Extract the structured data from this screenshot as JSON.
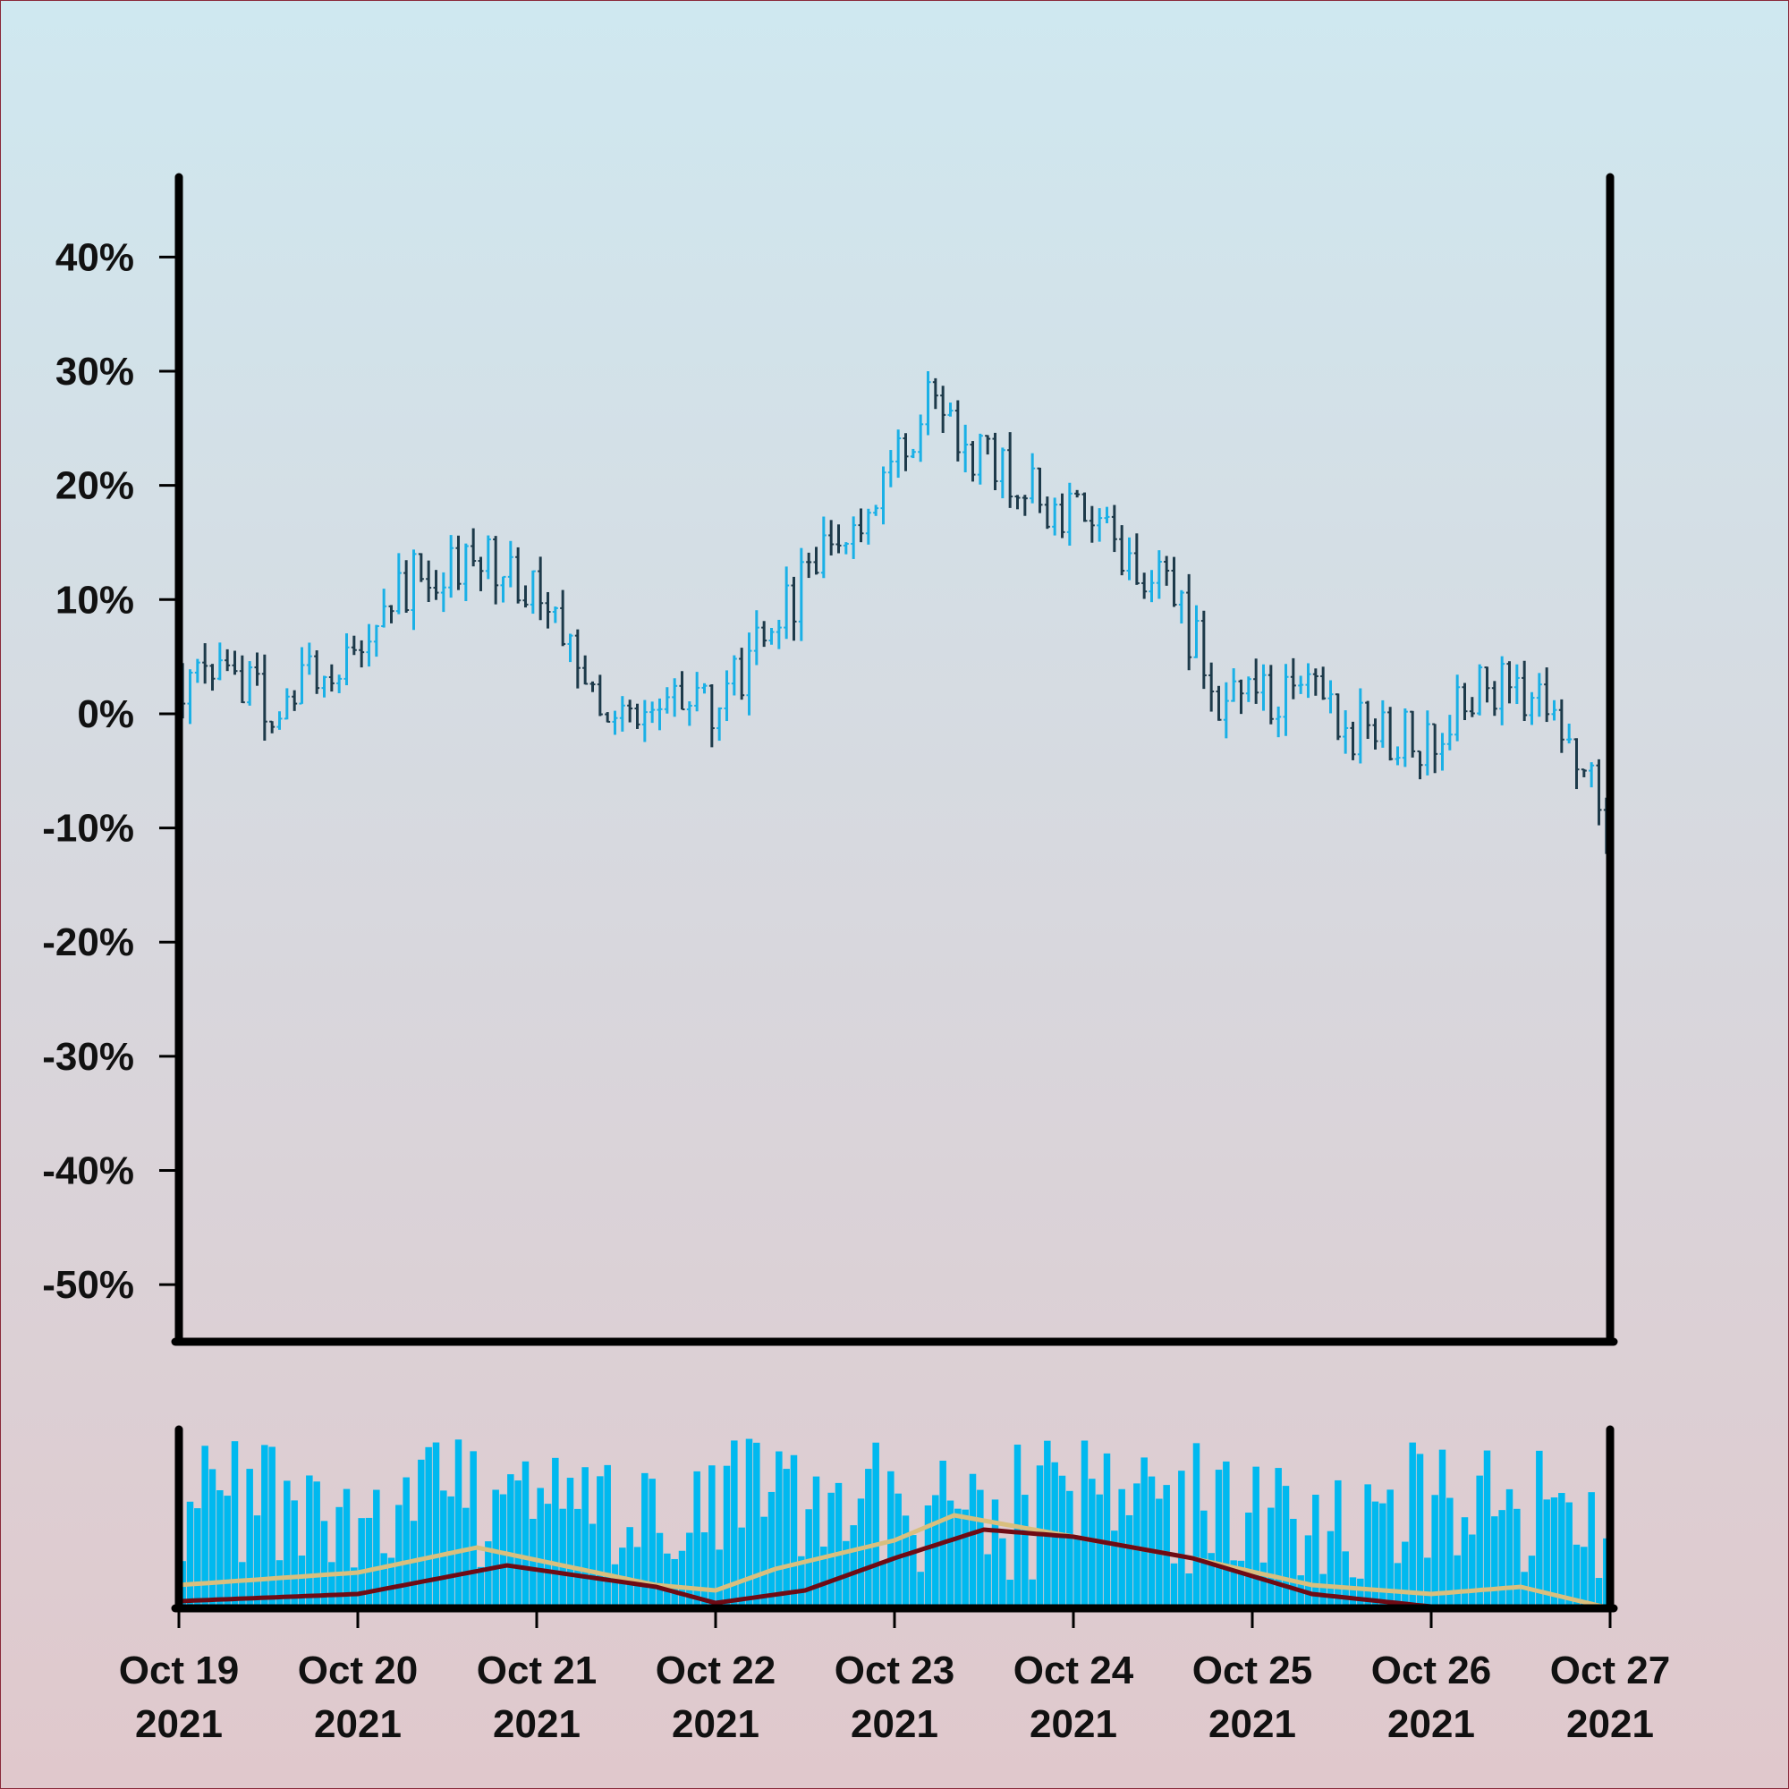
{
  "chart_data": {
    "type": "ohlc",
    "title": "",
    "xlabel": "",
    "ylabel": "",
    "ylim": [
      -55,
      47
    ],
    "y_ticks": [
      "40%",
      "30%",
      "20%",
      "10%",
      "0%",
      "-10%",
      "-20%",
      "-30%",
      "-40%",
      "-50%"
    ],
    "y_tick_values": [
      40,
      30,
      20,
      10,
      0,
      -10,
      -20,
      -30,
      -40,
      -50
    ],
    "x_ticks": [
      {
        "line1": "Oct 19",
        "line2": "2021",
        "date": "2021-10-19"
      },
      {
        "line1": "Oct 20",
        "line2": "2021",
        "date": "2021-10-20"
      },
      {
        "line1": "Oct 21",
        "line2": "2021",
        "date": "2021-10-21"
      },
      {
        "line1": "Oct 22",
        "line2": "2021",
        "date": "2021-10-22"
      },
      {
        "line1": "Oct 23",
        "line2": "2021",
        "date": "2021-10-23"
      },
      {
        "line1": "Oct 24",
        "line2": "2021",
        "date": "2021-10-24"
      },
      {
        "line1": "Oct 25",
        "line2": "2021",
        "date": "2021-10-25"
      },
      {
        "line1": "Oct 26",
        "line2": "2021",
        "date": "2021-10-26"
      },
      {
        "line1": "Oct 27",
        "line2": "2021",
        "date": "2021-10-27"
      }
    ],
    "x_range": [
      "2021-10-19",
      "2021-10-27"
    ],
    "bar_interval_hours": 1,
    "close_path_percent": [
      [
        "2021-10-19T00:00",
        3
      ],
      [
        "2021-10-19T08:00",
        4
      ],
      [
        "2021-10-19T12:00",
        0
      ],
      [
        "2021-10-20T00:00",
        6
      ],
      [
        "2021-10-20T08:00",
        12
      ],
      [
        "2021-10-20T16:00",
        14
      ],
      [
        "2021-10-21T00:00",
        11
      ],
      [
        "2021-10-21T08:00",
        2
      ],
      [
        "2021-10-21T16:00",
        0
      ],
      [
        "2021-10-22T00:00",
        0
      ],
      [
        "2021-10-22T08:00",
        8
      ],
      [
        "2021-10-22T16:00",
        16
      ],
      [
        "2021-10-23T00:00",
        21
      ],
      [
        "2021-10-23T04:00",
        27
      ],
      [
        "2021-10-23T12:00",
        22
      ],
      [
        "2021-10-24T00:00",
        17
      ],
      [
        "2021-10-24T12:00",
        12
      ],
      [
        "2021-10-24T20:00",
        1
      ],
      [
        "2021-10-25T08:00",
        1
      ],
      [
        "2021-10-25T16:00",
        -2
      ],
      [
        "2021-10-26T00:00",
        -2
      ],
      [
        "2021-10-26T08:00",
        3
      ],
      [
        "2021-10-26T16:00",
        0
      ],
      [
        "2021-10-27T00:00",
        -10
      ]
    ],
    "volume_ma_fast_path": [
      [
        "2021-10-19T00:00",
        0.13
      ],
      [
        "2021-10-20T00:00",
        0.2
      ],
      [
        "2021-10-20T16:00",
        0.34
      ],
      [
        "2021-10-21T16:00",
        0.13
      ],
      [
        "2021-10-22T00:00",
        0.1
      ],
      [
        "2021-10-22T08:00",
        0.22
      ],
      [
        "2021-10-23T00:00",
        0.38
      ],
      [
        "2021-10-23T08:00",
        0.52
      ],
      [
        "2021-10-24T00:00",
        0.4
      ],
      [
        "2021-10-24T16:00",
        0.28
      ],
      [
        "2021-10-25T08:00",
        0.13
      ],
      [
        "2021-10-26T00:00",
        0.08
      ],
      [
        "2021-10-26T12:00",
        0.12
      ],
      [
        "2021-10-27T00:00",
        0.0
      ]
    ],
    "volume_ma_slow_path": [
      [
        "2021-10-19T00:00",
        0.04
      ],
      [
        "2021-10-20T00:00",
        0.08
      ],
      [
        "2021-10-20T20:00",
        0.24
      ],
      [
        "2021-10-21T16:00",
        0.12
      ],
      [
        "2021-10-22T00:00",
        0.03
      ],
      [
        "2021-10-22T12:00",
        0.1
      ],
      [
        "2021-10-23T00:00",
        0.28
      ],
      [
        "2021-10-23T12:00",
        0.44
      ],
      [
        "2021-10-24T00:00",
        0.4
      ],
      [
        "2021-10-24T16:00",
        0.28
      ],
      [
        "2021-10-25T08:00",
        0.08
      ],
      [
        "2021-10-26T00:00",
        0.01
      ],
      [
        "2021-10-27T00:00",
        0.0
      ]
    ],
    "colors": {
      "background_top": "#cfe8f0",
      "background_bottom": "#e0c8cc",
      "up": "#1ab0e6",
      "down": "#1d3a4a",
      "volume": "#00b9ef",
      "volume_ma_fast": "#d9bf7e",
      "volume_ma_slow": "#6e0b14",
      "axis": "#000000",
      "frame": "#8a2a3a"
    },
    "seed": 20211019
  }
}
